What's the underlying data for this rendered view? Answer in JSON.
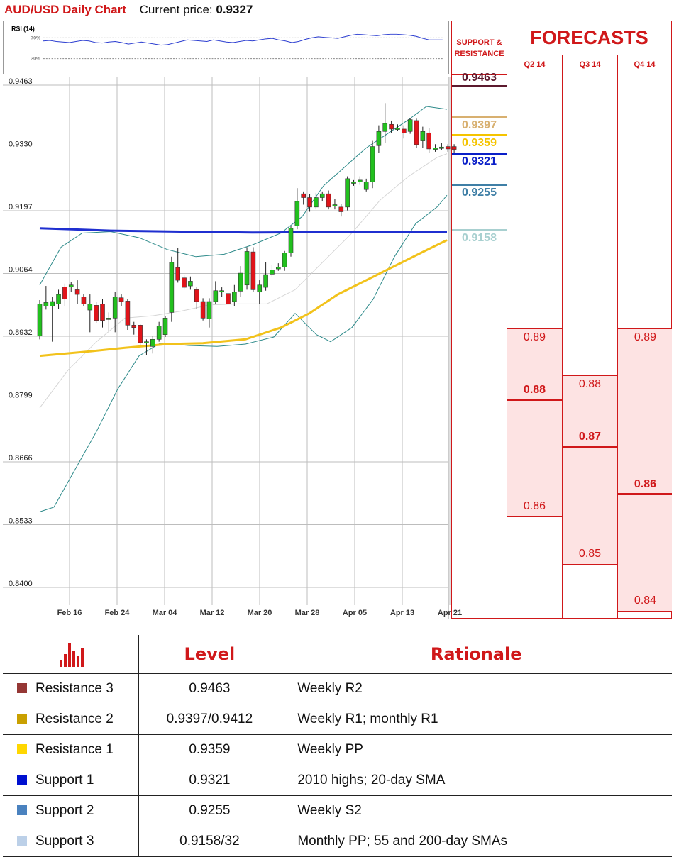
{
  "header": {
    "title": "AUD/USD Daily Chart",
    "price_label": "Current price:",
    "price_value": "0.9327"
  },
  "rsi": {
    "label": "RSI (14)",
    "level_high": "70%",
    "level_low": "30%",
    "series": [
      64,
      65,
      63,
      62,
      61,
      63,
      65,
      64,
      61,
      60,
      62,
      63,
      61,
      58,
      60,
      62,
      60,
      58,
      56,
      57,
      60,
      63,
      66,
      65,
      64,
      63,
      66,
      64,
      62,
      61,
      63,
      65,
      64,
      66,
      68,
      69,
      66,
      64,
      61,
      63,
      67,
      70,
      72,
      71,
      70,
      69,
      72,
      75,
      77,
      76,
      75,
      74,
      76,
      77,
      77,
      76,
      75,
      73,
      69,
      66,
      66,
      66
    ]
  },
  "chart_data": {
    "type": "candlestick",
    "title": "AUD/USD Daily Chart",
    "ylim": [
      0.84,
      0.9463
    ],
    "ytick_labels": [
      "0.9463",
      "0.9330",
      "0.9197",
      "0.9064",
      "0.8932",
      "0.8799",
      "0.8666",
      "0.8533",
      "0.8400"
    ],
    "xtick_labels": [
      "Feb 16",
      "Feb 24",
      "Mar 04",
      "Mar 12",
      "Mar 20",
      "Mar 28",
      "Apr 05",
      "Apr 13",
      "Apr 21"
    ],
    "candles": [
      [
        0.8932,
        0.9,
        0.8925,
        0.9008
      ],
      [
        0.8995,
        0.9003,
        0.8988,
        0.9038
      ],
      [
        0.8995,
        0.9005,
        0.892,
        0.9015
      ],
      [
        0.9,
        0.902,
        0.899,
        0.903
      ],
      [
        0.9036,
        0.901,
        0.8995,
        0.9043
      ],
      [
        0.9036,
        0.904,
        0.9025,
        0.9046
      ],
      [
        0.903,
        0.902,
        0.9,
        0.905
      ],
      [
        0.9015,
        0.9,
        0.8995,
        0.902
      ],
      [
        0.8987,
        0.9,
        0.894,
        0.902
      ],
      [
        0.8997,
        0.8965,
        0.896,
        0.9005
      ],
      [
        0.9,
        0.8965,
        0.895,
        0.901
      ],
      [
        0.8968,
        0.897,
        0.8942,
        0.8982
      ],
      [
        0.897,
        0.9015,
        0.894,
        0.9025
      ],
      [
        0.9013,
        0.9005,
        0.8995,
        0.902
      ],
      [
        0.9006,
        0.8955,
        0.8945,
        0.901
      ],
      [
        0.8955,
        0.895,
        0.8935,
        0.8962
      ],
      [
        0.8955,
        0.8918,
        0.8912,
        0.8958
      ],
      [
        0.8918,
        0.892,
        0.8892,
        0.8925
      ],
      [
        0.891,
        0.8925,
        0.8895,
        0.8932
      ],
      [
        0.8925,
        0.8953,
        0.892,
        0.8962
      ],
      [
        0.8935,
        0.897,
        0.893,
        0.8975
      ],
      [
        0.8982,
        0.9088,
        0.8962,
        0.91
      ],
      [
        0.9077,
        0.905,
        0.9045,
        0.9118
      ],
      [
        0.9055,
        0.9035,
        0.903,
        0.9062
      ],
      [
        0.9038,
        0.9048,
        0.903,
        0.9058
      ],
      [
        0.903,
        0.9005,
        0.899,
        0.9035
      ],
      [
        0.9005,
        0.897,
        0.8965,
        0.9012
      ],
      [
        0.8968,
        0.9005,
        0.895,
        0.9012
      ],
      [
        0.9005,
        0.9028,
        0.9,
        0.9048
      ],
      [
        0.9027,
        0.9028,
        0.9015,
        0.9035
      ],
      [
        0.9022,
        0.9,
        0.8995,
        0.903
      ],
      [
        0.9005,
        0.9025,
        0.8995,
        0.904
      ],
      [
        0.9027,
        0.9065,
        0.9015,
        0.908
      ],
      [
        0.904,
        0.9111,
        0.903,
        0.912
      ],
      [
        0.911,
        0.903,
        0.9025,
        0.912
      ],
      [
        0.9025,
        0.904,
        0.9,
        0.905
      ],
      [
        0.9035,
        0.9062,
        0.9028,
        0.9088
      ],
      [
        0.9063,
        0.9072,
        0.9058,
        0.9082
      ],
      [
        0.9074,
        0.9078,
        0.907,
        0.9086
      ],
      [
        0.9078,
        0.9108,
        0.907,
        0.9112
      ],
      [
        0.9108,
        0.916,
        0.91,
        0.9165
      ],
      [
        0.9165,
        0.9217,
        0.9158,
        0.9245
      ],
      [
        0.9233,
        0.9225,
        0.921,
        0.9238
      ],
      [
        0.9225,
        0.9205,
        0.9195,
        0.9232
      ],
      [
        0.9205,
        0.9225,
        0.92,
        0.9235
      ],
      [
        0.9225,
        0.9233,
        0.9218,
        0.9238
      ],
      [
        0.9233,
        0.9205,
        0.92,
        0.924
      ],
      [
        0.9208,
        0.921,
        0.92,
        0.9222
      ],
      [
        0.9205,
        0.9195,
        0.9185,
        0.9212
      ],
      [
        0.9205,
        0.9265,
        0.9198,
        0.927
      ],
      [
        0.9255,
        0.9258,
        0.925,
        0.9262
      ],
      [
        0.9258,
        0.9262,
        0.9252,
        0.927
      ],
      [
        0.9242,
        0.9258,
        0.9238,
        0.9265
      ],
      [
        0.9258,
        0.9333,
        0.9245,
        0.9345
      ],
      [
        0.9335,
        0.9365,
        0.932,
        0.9378
      ],
      [
        0.9365,
        0.9382,
        0.934,
        0.9425
      ],
      [
        0.938,
        0.937,
        0.9362,
        0.9388
      ],
      [
        0.937,
        0.9372,
        0.9366,
        0.938
      ],
      [
        0.937,
        0.9362,
        0.935,
        0.9378
      ],
      [
        0.9365,
        0.939,
        0.936,
        0.9393
      ],
      [
        0.9388,
        0.9337,
        0.933,
        0.9392
      ],
      [
        0.9345,
        0.9365,
        0.933,
        0.9375
      ],
      [
        0.9362,
        0.9328,
        0.932,
        0.9372
      ],
      [
        0.933,
        0.933,
        0.9322,
        0.9338
      ],
      [
        0.933,
        0.9332,
        0.9326,
        0.934
      ],
      [
        0.9333,
        0.9328,
        0.9322,
        0.9338
      ],
      [
        0.9333,
        0.9327,
        0.932,
        0.9338
      ]
    ],
    "overlays": {
      "sma_200": [
        [
          0,
          0.916
        ],
        [
          100,
          0.9155
        ],
        [
          200,
          0.9153
        ],
        [
          300,
          0.9151
        ],
        [
          400,
          0.9152
        ],
        [
          500,
          0.9153
        ],
        [
          574,
          0.9153
        ]
      ],
      "sma_55": [
        [
          0,
          0.889
        ],
        [
          60,
          0.8898
        ],
        [
          120,
          0.8907
        ],
        [
          180,
          0.8915
        ],
        [
          230,
          0.8917
        ],
        [
          290,
          0.8925
        ],
        [
          340,
          0.895
        ],
        [
          380,
          0.898
        ],
        [
          420,
          0.902
        ],
        [
          460,
          0.905
        ],
        [
          500,
          0.908
        ],
        [
          540,
          0.911
        ],
        [
          574,
          0.9135
        ]
      ],
      "bb_upper": [
        [
          0,
          0.904
        ],
        [
          30,
          0.912
        ],
        [
          60,
          0.915
        ],
        [
          100,
          0.9153
        ],
        [
          140,
          0.914
        ],
        [
          180,
          0.9115
        ],
        [
          220,
          0.91
        ],
        [
          260,
          0.9105
        ],
        [
          300,
          0.9125
        ],
        [
          340,
          0.915
        ],
        [
          370,
          0.9185
        ],
        [
          400,
          0.925
        ],
        [
          430,
          0.929
        ],
        [
          460,
          0.933
        ],
        [
          490,
          0.936
        ],
        [
          520,
          0.939
        ],
        [
          545,
          0.9418
        ],
        [
          574,
          0.9412
        ]
      ],
      "bb_lower": [
        [
          0,
          0.856
        ],
        [
          20,
          0.857
        ],
        [
          50,
          0.865
        ],
        [
          80,
          0.873
        ],
        [
          110,
          0.882
        ],
        [
          140,
          0.889
        ],
        [
          170,
          0.8917
        ],
        [
          210,
          0.8912
        ],
        [
          250,
          0.891
        ],
        [
          290,
          0.8915
        ],
        [
          330,
          0.893
        ],
        [
          360,
          0.898
        ],
        [
          390,
          0.8935
        ],
        [
          410,
          0.892
        ],
        [
          440,
          0.895
        ],
        [
          470,
          0.901
        ],
        [
          500,
          0.91
        ],
        [
          530,
          0.917
        ],
        [
          560,
          0.9205
        ],
        [
          574,
          0.923
        ]
      ],
      "sma_20": [
        [
          0,
          0.878
        ],
        [
          40,
          0.886
        ],
        [
          80,
          0.892
        ],
        [
          120,
          0.897
        ],
        [
          160,
          0.8975
        ],
        [
          200,
          0.8985
        ],
        [
          240,
          0.8998
        ],
        [
          280,
          0.9
        ],
        [
          320,
          0.9
        ],
        [
          360,
          0.903
        ],
        [
          400,
          0.909
        ],
        [
          440,
          0.915
        ],
        [
          480,
          0.922
        ],
        [
          520,
          0.927
        ],
        [
          560,
          0.931
        ],
        [
          574,
          0.9318
        ]
      ]
    }
  },
  "sr_panel": {
    "header": "SUPPORT & RESISTANCE",
    "levels": [
      {
        "label": "0.9463",
        "value": 0.9463,
        "color": "#5c1a2e"
      },
      {
        "label": "0.9397",
        "value": 0.9397,
        "color": "#d8b070"
      },
      {
        "label": "0.9359",
        "value": 0.9359,
        "color": "#f5c400"
      },
      {
        "label": "0.9321",
        "value": 0.9321,
        "color": "#0a1fc8"
      },
      {
        "label": "0.9255",
        "value": 0.9255,
        "color": "#3f7fa6"
      },
      {
        "label": "0.9158",
        "value": 0.9158,
        "color": "#a8d0d0"
      }
    ]
  },
  "forecasts": {
    "title": "FORECASTS",
    "columns": [
      {
        "quarter": "Q2 14",
        "high": "0.89",
        "mid": "0.88",
        "low": "0.86",
        "high_v": 0.89,
        "mid_v": 0.88,
        "low_v": 0.86
      },
      {
        "quarter": "Q3 14",
        "high": "0.88",
        "mid": "0.87",
        "low": "0.85",
        "high_v": 0.88,
        "mid_v": 0.87,
        "low_v": 0.85
      },
      {
        "quarter": "Q4 14",
        "high": "0.89",
        "mid": "0.86",
        "low": "0.84",
        "high_v": 0.89,
        "mid_v": 0.86,
        "low_v": 0.84
      }
    ]
  },
  "table": {
    "headers": {
      "level": "Level",
      "rationale": "Rationale"
    },
    "rows": [
      {
        "name": "Resistance 3",
        "level": "0.9463",
        "rationale": "Weekly R2",
        "color": "#953735"
      },
      {
        "name": "Resistance 2",
        "level": "0.9397/0.9412",
        "rationale": "Weekly R1; monthly R1",
        "color": "#c9a000"
      },
      {
        "name": "Resistance 1",
        "level": "0.9359",
        "rationale": "Weekly PP",
        "color": "#ffd700"
      },
      {
        "name": "Support 1",
        "level": "0.9321",
        "rationale": "2010 highs; 20-day SMA",
        "color": "#0010d0"
      },
      {
        "name": "Support 2",
        "level": "0.9255",
        "rationale": "Weekly S2",
        "color": "#4a82bf"
      },
      {
        "name": "Support 3",
        "level": "0.9158/32",
        "rationale": "Monthly PP; 55 and 200-day SMAs",
        "color": "#bcd0e8"
      }
    ]
  }
}
